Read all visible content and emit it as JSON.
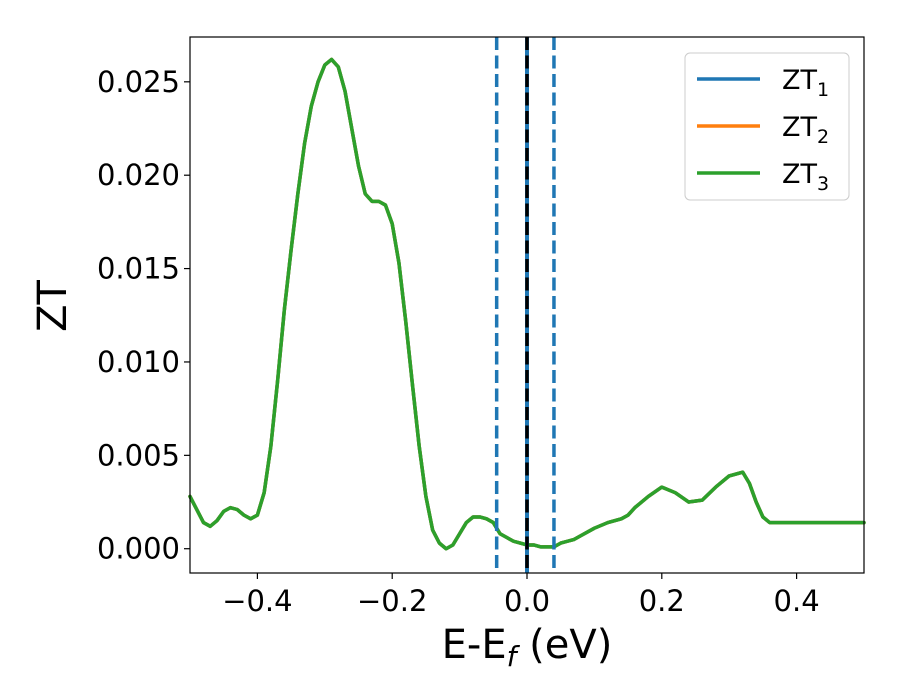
{
  "chart_data": {
    "type": "line",
    "title": "",
    "xlabel": {
      "main": "E-E",
      "sub": "f",
      "unit": " (eV)"
    },
    "ylabel": "ZT",
    "xlim": [
      -0.5,
      0.5
    ],
    "ylim": [
      -0.0013,
      0.0274
    ],
    "xticks": [
      -0.4,
      -0.2,
      0.0,
      0.2,
      0.4
    ],
    "xtick_labels": [
      "−0.4",
      "−0.2",
      "0.0",
      "0.2",
      "0.4"
    ],
    "yticks": [
      0.0,
      0.005,
      0.01,
      0.015,
      0.02,
      0.025
    ],
    "ytick_labels": [
      "0.000",
      "0.005",
      "0.010",
      "0.015",
      "0.020",
      "0.025"
    ],
    "grid": false,
    "legend_position": "top-right",
    "vlines": [
      {
        "x": -0.045,
        "style": "dashed",
        "color": "#1f77b4"
      },
      {
        "x": 0.0,
        "style": "solid",
        "color": "#1f77b4"
      },
      {
        "x": 0.0,
        "style": "dashed",
        "color": "#000000"
      },
      {
        "x": 0.04,
        "style": "dashed",
        "color": "#1f77b4"
      }
    ],
    "x": [
      -0.5,
      -0.48,
      -0.47,
      -0.46,
      -0.45,
      -0.44,
      -0.43,
      -0.42,
      -0.41,
      -0.4,
      -0.39,
      -0.38,
      -0.37,
      -0.36,
      -0.35,
      -0.34,
      -0.33,
      -0.32,
      -0.31,
      -0.3,
      -0.29,
      -0.28,
      -0.27,
      -0.26,
      -0.25,
      -0.24,
      -0.23,
      -0.22,
      -0.21,
      -0.2,
      -0.19,
      -0.18,
      -0.17,
      -0.16,
      -0.15,
      -0.14,
      -0.13,
      -0.12,
      -0.11,
      -0.1,
      -0.09,
      -0.08,
      -0.07,
      -0.06,
      -0.05,
      -0.045,
      -0.04,
      -0.03,
      -0.02,
      -0.01,
      0.0,
      0.01,
      0.02,
      0.03,
      0.04,
      0.05,
      0.06,
      0.07,
      0.08,
      0.1,
      0.12,
      0.14,
      0.15,
      0.16,
      0.18,
      0.2,
      0.22,
      0.24,
      0.26,
      0.28,
      0.3,
      0.32,
      0.33,
      0.34,
      0.35,
      0.36,
      0.37,
      0.38,
      0.39,
      0.4,
      0.41,
      0.42,
      0.43,
      0.44,
      0.45,
      0.46,
      0.47,
      0.48,
      0.49,
      0.5
    ],
    "series": [
      {
        "name": "ZT",
        "sub": "1",
        "color": "#1f77b4",
        "values": [
          0.0028,
          0.0014,
          0.0012,
          0.0015,
          0.002,
          0.0022,
          0.0021,
          0.0018,
          0.0016,
          0.0018,
          0.003,
          0.0055,
          0.009,
          0.0128,
          0.016,
          0.019,
          0.0217,
          0.0237,
          0.025,
          0.0259,
          0.0262,
          0.0258,
          0.0245,
          0.0225,
          0.0205,
          0.019,
          0.0186,
          0.0186,
          0.0184,
          0.0174,
          0.0153,
          0.0122,
          0.0088,
          0.0055,
          0.0028,
          0.001,
          0.0003,
          0.0,
          0.0002,
          0.0008,
          0.0014,
          0.0017,
          0.0017,
          0.0016,
          0.0014,
          0.0011,
          0.0008,
          0.0006,
          0.0004,
          0.0003,
          0.0002,
          0.0002,
          0.0001,
          0.0001,
          0.0001,
          0.0003,
          0.0004,
          0.0005,
          0.0007,
          0.0011,
          0.0014,
          0.0016,
          0.0018,
          0.0022,
          0.0028,
          0.0033,
          0.003,
          0.0025,
          0.0026,
          0.0033,
          0.0039,
          0.0041,
          0.0035,
          0.0025,
          0.0017,
          0.0014,
          0.0014,
          0.0014,
          0.0014,
          0.0014,
          0.0014,
          0.0014,
          0.0014,
          0.0014,
          0.0014,
          0.0014,
          0.0014,
          0.0014,
          0.0014,
          0.0014
        ]
      },
      {
        "name": "ZT",
        "sub": "2",
        "color": "#ff7f0e",
        "values": "same_as_ZT1"
      },
      {
        "name": "ZT",
        "sub": "3",
        "color": "#2ca02c",
        "values": "same_as_ZT1"
      }
    ]
  }
}
